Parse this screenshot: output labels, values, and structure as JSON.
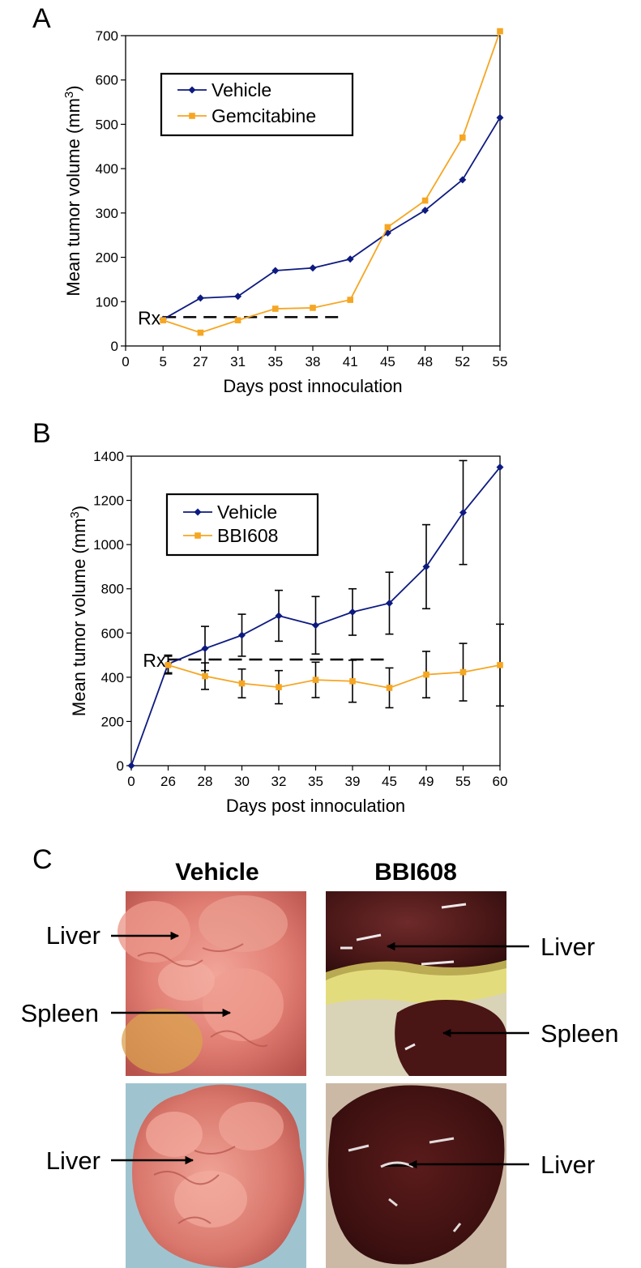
{
  "panels": {
    "a": {
      "label": "A"
    },
    "b": {
      "label": "B"
    },
    "c": {
      "label": "C"
    }
  },
  "chart_data": [
    {
      "type": "line",
      "x_categories": [
        "0",
        "5",
        "27",
        "31",
        "35",
        "38",
        "41",
        "45",
        "48",
        "52",
        "55"
      ],
      "xlabel": "Days post innoculation",
      "ylabel": "Mean tumor volume (mm3)",
      "ylim": [
        0,
        700
      ],
      "yticks": [
        0,
        100,
        200,
        300,
        400,
        500,
        600,
        700
      ],
      "legend_position": "top-left",
      "annotation": {
        "text": "Rx",
        "value": 65,
        "from_category": "5",
        "to_category": "41"
      },
      "series": [
        {
          "name": "Vehicle",
          "color": "#0d1a80",
          "marker": "diamond",
          "x": [
            "5",
            "27",
            "31",
            "35",
            "38",
            "41",
            "45",
            "48",
            "52",
            "55"
          ],
          "values": [
            60,
            108,
            112,
            170,
            176,
            196,
            255,
            306,
            375,
            515
          ]
        },
        {
          "name": "Gemcitabine",
          "color": "#f5a623",
          "marker": "square",
          "x": [
            "5",
            "27",
            "31",
            "35",
            "38",
            "41",
            "45",
            "48",
            "52",
            "55"
          ],
          "values": [
            58,
            30,
            58,
            84,
            86,
            104,
            268,
            328,
            470,
            710
          ]
        }
      ]
    },
    {
      "type": "line",
      "x_categories": [
        "0",
        "26",
        "28",
        "30",
        "32",
        "35",
        "39",
        "45",
        "49",
        "55",
        "60"
      ],
      "xlabel": "Days post innoculation",
      "ylabel": "Mean tumor volume (mm3)",
      "ylim": [
        0,
        1400
      ],
      "yticks": [
        0,
        200,
        400,
        600,
        800,
        1000,
        1200,
        1400
      ],
      "legend_position": "top-left",
      "annotation": {
        "text": "Rx",
        "value": 480,
        "from_category": "26",
        "to_category": "45"
      },
      "series": [
        {
          "name": "Vehicle",
          "color": "#0d1a80",
          "marker": "diamond",
          "x": [
            "0",
            "26",
            "28",
            "30",
            "32",
            "35",
            "39",
            "45",
            "49",
            "55",
            "60"
          ],
          "values": [
            0,
            460,
            530,
            590,
            678,
            635,
            695,
            735,
            900,
            1145,
            1350
          ],
          "errors": [
            0,
            40,
            100,
            95,
            115,
            130,
            105,
            140,
            190,
            235,
            0
          ]
        },
        {
          "name": "BBI608",
          "color": "#f5a623",
          "marker": "square",
          "x": [
            "26",
            "28",
            "30",
            "32",
            "35",
            "39",
            "45",
            "49",
            "55",
            "60"
          ],
          "values": [
            455,
            405,
            372,
            355,
            388,
            382,
            352,
            412,
            423,
            455
          ],
          "errors": [
            40,
            60,
            65,
            75,
            80,
            95,
            90,
            105,
            130,
            185
          ]
        }
      ]
    }
  ],
  "photo_panel": {
    "column_titles": [
      "Vehicle",
      "BBI608"
    ],
    "labels": {
      "vehicle_top_liver": "Liver",
      "vehicle_top_spleen": "Spleen",
      "bbi_top_liver": "Liver",
      "bbi_top_spleen": "Spleen",
      "vehicle_bottom_liver": "Liver",
      "bbi_bottom_liver": "Liver"
    }
  }
}
